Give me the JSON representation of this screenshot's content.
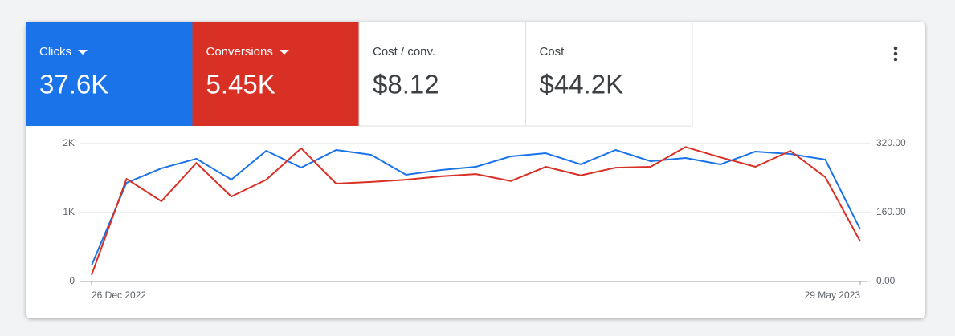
{
  "cards": [
    {
      "label": "Clicks",
      "value": "37.6K",
      "color": "#1a73e8",
      "dropdown": true
    },
    {
      "label": "Conversions",
      "value": "5.45K",
      "color": "#d93025",
      "dropdown": true
    },
    {
      "label": "Cost / conv.",
      "value": "$8.12",
      "color": "#ffffff",
      "dropdown": false
    },
    {
      "label": "Cost",
      "value": "$44.2K",
      "color": "#ffffff",
      "dropdown": false
    }
  ],
  "chart_data": {
    "type": "line",
    "categories": [
      "26 Dec 2022",
      null,
      null,
      null,
      null,
      null,
      null,
      null,
      null,
      null,
      null,
      null,
      null,
      null,
      null,
      null,
      null,
      null,
      null,
      null,
      null,
      null,
      "29 May 2023"
    ],
    "series": [
      {
        "name": "Clicks",
        "color": "#1a73e8",
        "values": [
          233,
          1430,
          1640,
          1780,
          1477,
          1895,
          1651,
          1907,
          1837,
          1547,
          1616,
          1663,
          1814,
          1860,
          1698,
          1907,
          1744,
          1791,
          1698,
          1884,
          1849,
          1767,
          756
        ]
      },
      {
        "name": "Conversions",
        "color": "#d93025",
        "axis": "y2",
        "values": [
          15,
          238,
          186,
          275,
          197,
          236,
          309,
          227,
          231,
          236,
          244,
          249,
          233,
          266,
          246,
          264,
          266,
          312,
          288,
          266,
          303,
          242,
          93
        ]
      }
    ],
    "ylim": [
      0,
      2000
    ],
    "yticks": [
      0,
      {
        "value": 1000,
        "label": "1K"
      },
      {
        "value": 2000,
        "label": "2K"
      }
    ],
    "y2lim": [
      0,
      320
    ],
    "y2ticks": [
      {
        "value": 0,
        "label": "0.00"
      },
      {
        "value": 160,
        "label": "160.00"
      },
      {
        "value": 320,
        "label": "320.00"
      }
    ],
    "grid": true
  }
}
